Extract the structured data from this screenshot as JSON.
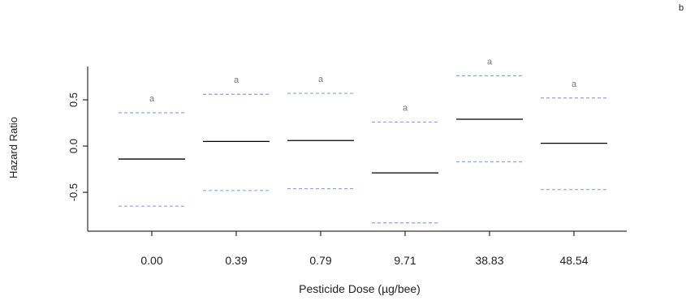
{
  "panel_letter": "b",
  "chart_data": {
    "type": "interval",
    "xlabel": "Pesticide Dose (µg/bee)",
    "ylabel": "Hazard Ratio",
    "categories": [
      "0.00",
      "0.39",
      "0.79",
      "9.71",
      "38.83",
      "48.54"
    ],
    "estimate": [
      -0.14,
      0.05,
      0.06,
      -0.29,
      0.29,
      0.03
    ],
    "lower": [
      -0.65,
      -0.48,
      -0.46,
      -0.83,
      -0.17,
      -0.47
    ],
    "upper": [
      0.36,
      0.56,
      0.57,
      0.26,
      0.76,
      0.52
    ],
    "group_letters": [
      "a",
      "a",
      "a",
      "a",
      "a",
      "a"
    ],
    "yticks": [
      -0.5,
      0.0,
      0.5
    ],
    "ytick_labels": [
      "-0.5",
      "0.0",
      "0.5"
    ],
    "ylim": [
      -0.92,
      0.86
    ],
    "colors": {
      "estimate": "#000000",
      "ci": "#8fa3e0",
      "letter": "#777777",
      "axis": "#000000"
    },
    "grid": false,
    "legend": "none"
  }
}
